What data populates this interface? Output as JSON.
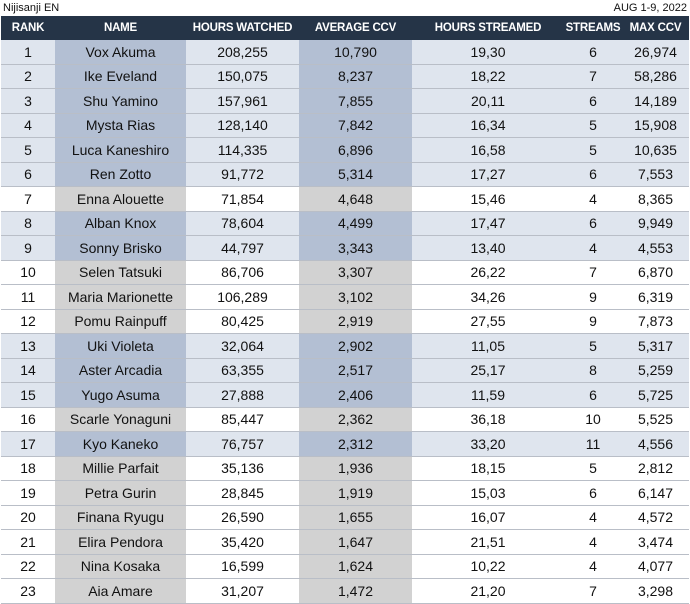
{
  "header": {
    "title": "Nijisanji EN",
    "date": "AUG 1-9, 2022"
  },
  "columns": [
    "RANK",
    "NAME",
    "HOURS WATCHED",
    "AVERAGE CCV",
    "HOURS STREAMED",
    "STREAMS",
    "MAX CCV"
  ],
  "rows": [
    {
      "rank": "1",
      "name": "Vox Akuma",
      "hours_watched": "208,255",
      "avg_ccv": "10,790",
      "hours_streamed": "19,30",
      "streams": "6",
      "max_ccv": "26,974",
      "group": "blue"
    },
    {
      "rank": "2",
      "name": "Ike Eveland",
      "hours_watched": "150,075",
      "avg_ccv": "8,237",
      "hours_streamed": "18,22",
      "streams": "7",
      "max_ccv": "58,286",
      "group": "blue"
    },
    {
      "rank": "3",
      "name": "Shu Yamino",
      "hours_watched": "157,961",
      "avg_ccv": "7,855",
      "hours_streamed": "20,11",
      "streams": "6",
      "max_ccv": "14,189",
      "group": "blue"
    },
    {
      "rank": "4",
      "name": "Mysta Rias",
      "hours_watched": "128,140",
      "avg_ccv": "7,842",
      "hours_streamed": "16,34",
      "streams": "5",
      "max_ccv": "15,908",
      "group": "blue"
    },
    {
      "rank": "5",
      "name": "Luca Kaneshiro",
      "hours_watched": "114,335",
      "avg_ccv": "6,896",
      "hours_streamed": "16,58",
      "streams": "5",
      "max_ccv": "10,635",
      "group": "blue"
    },
    {
      "rank": "6",
      "name": "Ren Zotto",
      "hours_watched": "91,772",
      "avg_ccv": "5,314",
      "hours_streamed": "17,27",
      "streams": "6",
      "max_ccv": "7,553",
      "group": "blue"
    },
    {
      "rank": "7",
      "name": "Enna Alouette",
      "hours_watched": "71,854",
      "avg_ccv": "4,648",
      "hours_streamed": "15,46",
      "streams": "4",
      "max_ccv": "8,365",
      "group": "grey"
    },
    {
      "rank": "8",
      "name": "Alban Knox",
      "hours_watched": "78,604",
      "avg_ccv": "4,499",
      "hours_streamed": "17,47",
      "streams": "6",
      "max_ccv": "9,949",
      "group": "blue"
    },
    {
      "rank": "9",
      "name": "Sonny Brisko",
      "hours_watched": "44,797",
      "avg_ccv": "3,343",
      "hours_streamed": "13,40",
      "streams": "4",
      "max_ccv": "4,553",
      "group": "blue"
    },
    {
      "rank": "10",
      "name": "Selen Tatsuki",
      "hours_watched": "86,706",
      "avg_ccv": "3,307",
      "hours_streamed": "26,22",
      "streams": "7",
      "max_ccv": "6,870",
      "group": "grey"
    },
    {
      "rank": "11",
      "name": "Maria Marionette",
      "hours_watched": "106,289",
      "avg_ccv": "3,102",
      "hours_streamed": "34,26",
      "streams": "9",
      "max_ccv": "6,319",
      "group": "grey"
    },
    {
      "rank": "12",
      "name": "Pomu Rainpuff",
      "hours_watched": "80,425",
      "avg_ccv": "2,919",
      "hours_streamed": "27,55",
      "streams": "9",
      "max_ccv": "7,873",
      "group": "grey"
    },
    {
      "rank": "13",
      "name": "Uki Violeta",
      "hours_watched": "32,064",
      "avg_ccv": "2,902",
      "hours_streamed": "11,05",
      "streams": "5",
      "max_ccv": "5,317",
      "group": "blue"
    },
    {
      "rank": "14",
      "name": "Aster Arcadia",
      "hours_watched": "63,355",
      "avg_ccv": "2,517",
      "hours_streamed": "25,17",
      "streams": "8",
      "max_ccv": "5,259",
      "group": "blue"
    },
    {
      "rank": "15",
      "name": "Yugo Asuma",
      "hours_watched": "27,888",
      "avg_ccv": "2,406",
      "hours_streamed": "11,59",
      "streams": "6",
      "max_ccv": "5,725",
      "group": "blue"
    },
    {
      "rank": "16",
      "name": "Scarle Yonaguni",
      "hours_watched": "85,447",
      "avg_ccv": "2,362",
      "hours_streamed": "36,18",
      "streams": "10",
      "max_ccv": "5,525",
      "group": "grey"
    },
    {
      "rank": "17",
      "name": "Kyo Kaneko",
      "hours_watched": "76,757",
      "avg_ccv": "2,312",
      "hours_streamed": "33,20",
      "streams": "11",
      "max_ccv": "4,556",
      "group": "blue"
    },
    {
      "rank": "18",
      "name": "Millie Parfait",
      "hours_watched": "35,136",
      "avg_ccv": "1,936",
      "hours_streamed": "18,15",
      "streams": "5",
      "max_ccv": "2,812",
      "group": "grey"
    },
    {
      "rank": "19",
      "name": "Petra Gurin",
      "hours_watched": "28,845",
      "avg_ccv": "1,919",
      "hours_streamed": "15,03",
      "streams": "6",
      "max_ccv": "6,147",
      "group": "grey"
    },
    {
      "rank": "20",
      "name": "Finana Ryugu",
      "hours_watched": "26,590",
      "avg_ccv": "1,655",
      "hours_streamed": "16,07",
      "streams": "4",
      "max_ccv": "4,572",
      "group": "grey"
    },
    {
      "rank": "21",
      "name": "Elira Pendora",
      "hours_watched": "35,420",
      "avg_ccv": "1,647",
      "hours_streamed": "21,51",
      "streams": "4",
      "max_ccv": "3,474",
      "group": "grey"
    },
    {
      "rank": "22",
      "name": "Nina Kosaka",
      "hours_watched": "16,599",
      "avg_ccv": "1,624",
      "hours_streamed": "10,22",
      "streams": "4",
      "max_ccv": "4,077",
      "group": "grey"
    },
    {
      "rank": "23",
      "name": "Aia Amare",
      "hours_watched": "31,207",
      "avg_ccv": "1,472",
      "hours_streamed": "21,20",
      "streams": "7",
      "max_ccv": "3,298",
      "group": "grey"
    }
  ],
  "colors": {
    "header_bg": "#253447",
    "blue_highlight": "#b3bfd3",
    "blue_plain": "#dfe5ee",
    "grey_highlight": "#d2d2d2",
    "grey_plain": "#ffffff"
  }
}
